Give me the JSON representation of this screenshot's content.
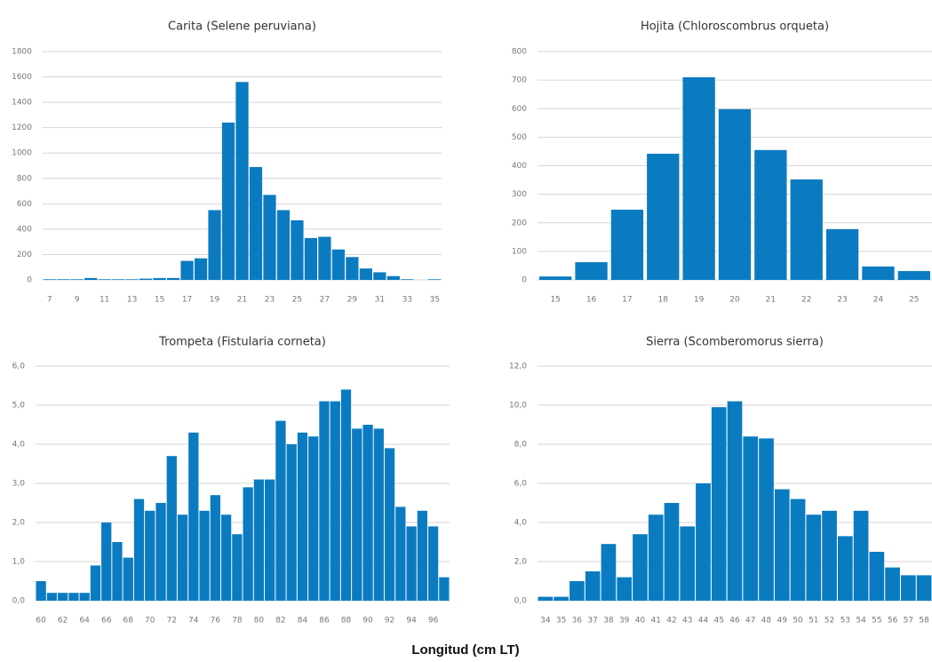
{
  "chart_data": [
    {
      "type": "bar",
      "title": "Carita (Selene peruviana)",
      "color": "#0b7bc1",
      "grid": true,
      "categories": [
        7,
        null,
        9,
        null,
        11,
        null,
        13,
        null,
        15,
        null,
        17,
        null,
        19,
        null,
        21,
        null,
        23,
        null,
        25,
        null,
        27,
        null,
        29,
        null,
        31,
        null,
        33,
        null,
        35
      ],
      "values": [
        5,
        5,
        5,
        15,
        5,
        5,
        5,
        10,
        15,
        15,
        150,
        170,
        550,
        1240,
        1560,
        890,
        670,
        550,
        470,
        330,
        340,
        240,
        180,
        90,
        60,
        30,
        5,
        0,
        5
      ],
      "ylim": [
        0,
        1800
      ],
      "yticks": [
        0,
        200,
        400,
        600,
        800,
        1000,
        1200,
        1400,
        1600,
        1800
      ]
    },
    {
      "type": "bar",
      "title": "Hojita (Chloroscombrus orqueta)",
      "color": "#0b7bc1",
      "grid": true,
      "categories": [
        15,
        16,
        17,
        18,
        19,
        20,
        21,
        22,
        23,
        24,
        25
      ],
      "values": [
        12,
        62,
        246,
        442,
        710,
        598,
        455,
        352,
        178,
        47,
        31
      ],
      "ylim": [
        0,
        800
      ],
      "yticks": [
        0,
        100,
        200,
        300,
        400,
        500,
        600,
        700,
        800
      ]
    },
    {
      "type": "bar",
      "title": "Trompeta (Fistularia corneta)",
      "color": "#0b7bc1",
      "grid": true,
      "categories": [
        60,
        null,
        62,
        null,
        64,
        null,
        66,
        null,
        68,
        null,
        70,
        null,
        72,
        null,
        74,
        null,
        76,
        null,
        78,
        null,
        80,
        null,
        82,
        null,
        84,
        null,
        86,
        null,
        88,
        null,
        90,
        null,
        92,
        null,
        94,
        null,
        96,
        null
      ],
      "values": [
        0.5,
        0.2,
        0.2,
        0.2,
        0.2,
        0.9,
        2.0,
        1.5,
        1.1,
        2.6,
        2.3,
        2.5,
        3.7,
        2.2,
        4.3,
        2.3,
        2.7,
        2.2,
        1.7,
        2.9,
        3.1,
        3.1,
        4.6,
        4.0,
        4.3,
        4.2,
        5.1,
        5.1,
        5.4,
        4.4,
        4.5,
        4.4,
        3.9,
        2.4,
        1.9,
        2.3,
        1.9,
        0.6
      ],
      "ylim": [
        0,
        6
      ],
      "yticks": [
        {
          "value": 0,
          "label": "0,0"
        },
        {
          "value": 1,
          "label": "1,0"
        },
        {
          "value": 2,
          "label": "2,0"
        },
        {
          "value": 3,
          "label": "3,0"
        },
        {
          "value": 4,
          "label": "4,0"
        },
        {
          "value": 5,
          "label": "5,0"
        },
        {
          "value": 6,
          "label": "6,0"
        }
      ]
    },
    {
      "type": "bar",
      "title": "Sierra (Scomberomorus sierra)",
      "color": "#0b7bc1",
      "grid": true,
      "categories": [
        34,
        35,
        36,
        37,
        38,
        39,
        40,
        41,
        42,
        43,
        44,
        45,
        46,
        47,
        48,
        49,
        50,
        51,
        52,
        53,
        54,
        55,
        56,
        57,
        58
      ],
      "values": [
        0.2,
        0.2,
        1.0,
        1.5,
        2.9,
        1.2,
        3.4,
        4.4,
        5.0,
        3.8,
        6.0,
        9.9,
        10.2,
        8.4,
        8.3,
        5.7,
        5.2,
        4.4,
        4.6,
        3.3,
        4.6,
        2.5,
        1.7,
        1.3,
        1.3
      ],
      "ylim": [
        0,
        12
      ],
      "yticks": [
        {
          "value": 0,
          "label": "0,0"
        },
        {
          "value": 2,
          "label": "2,0"
        },
        {
          "value": 4,
          "label": "4,0"
        },
        {
          "value": 6,
          "label": "6,0"
        },
        {
          "value": 8,
          "label": "8,0"
        },
        {
          "value": 10,
          "label": "10,0"
        },
        {
          "value": 12,
          "label": "12,0"
        }
      ]
    }
  ],
  "x_label": "Longitud (cm LT)"
}
